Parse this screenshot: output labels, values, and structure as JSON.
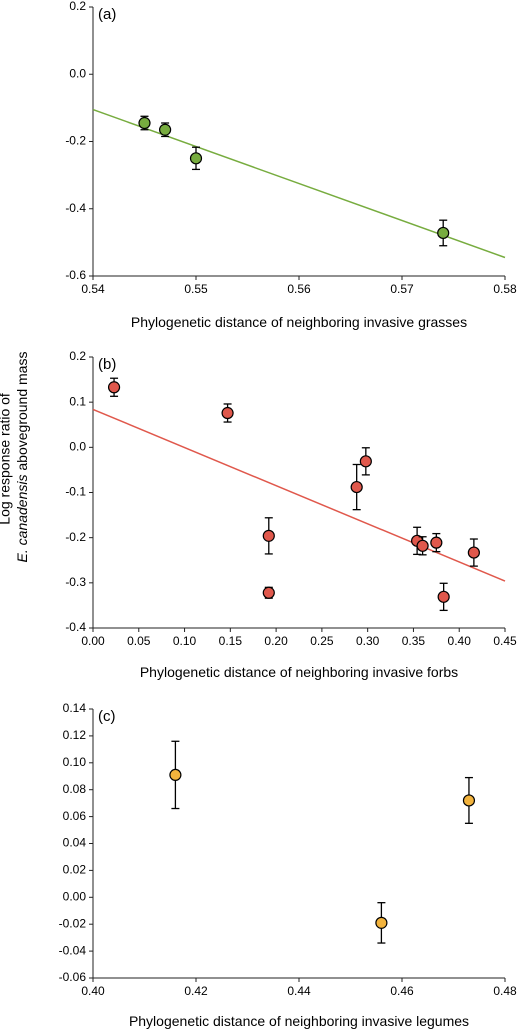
{
  "y_axis_label_line1": "Log response ratio of",
  "y_axis_label_line2_italic": "E. canadensis",
  "y_axis_label_line2_rest": " aboveground mass",
  "colors": {
    "grasses": "#77ac3f",
    "forbs": "#e0584c",
    "legumes": "#f2b33d",
    "line_a": "#77ac3f",
    "line_b": "#e0584c"
  },
  "chart_data": [
    {
      "type": "scatter",
      "panel_label": "(a)",
      "xlabel": "Phylogenetic distance of neighboring invasive grasses",
      "xlim": [
        0.54,
        0.58
      ],
      "ylim": [
        -0.6,
        0.2
      ],
      "x_ticks": [
        "0.54",
        "0.55",
        "0.56",
        "0.57",
        "0.58"
      ],
      "y_ticks": [
        "0.2",
        "0.0",
        "-0.2",
        "-0.4",
        "-0.6"
      ],
      "points": [
        {
          "x": 0.545,
          "y": -0.145,
          "err": 0.02
        },
        {
          "x": 0.547,
          "y": -0.165,
          "err": 0.02
        },
        {
          "x": 0.55,
          "y": -0.25,
          "err": 0.033
        },
        {
          "x": 0.574,
          "y": -0.472,
          "err": 0.038
        }
      ],
      "trendline": {
        "x": [
          0.54,
          0.58
        ],
        "y": [
          -0.105,
          -0.545
        ]
      }
    },
    {
      "type": "scatter",
      "panel_label": "(b)",
      "xlabel": "Phylogenetic distance of neighboring invasive forbs",
      "xlim": [
        0.0,
        0.45
      ],
      "ylim": [
        -0.4,
        0.2
      ],
      "x_ticks": [
        "0.00",
        "0.05",
        "0.10",
        "0.15",
        "0.20",
        "0.25",
        "0.30",
        "0.35",
        "0.40",
        "0.45"
      ],
      "y_ticks": [
        "0.2",
        "0.1",
        "0.0",
        "-0.1",
        "-0.2",
        "-0.3",
        "-0.4"
      ],
      "points": [
        {
          "x": 0.023,
          "y": 0.133,
          "err": 0.02
        },
        {
          "x": 0.147,
          "y": 0.076,
          "err": 0.02
        },
        {
          "x": 0.192,
          "y": -0.196,
          "err": 0.04
        },
        {
          "x": 0.192,
          "y": -0.322,
          "err": 0.012
        },
        {
          "x": 0.288,
          "y": -0.088,
          "err": 0.05
        },
        {
          "x": 0.298,
          "y": -0.031,
          "err": 0.03
        },
        {
          "x": 0.354,
          "y": -0.207,
          "err": 0.03
        },
        {
          "x": 0.36,
          "y": -0.218,
          "err": 0.02
        },
        {
          "x": 0.375,
          "y": -0.211,
          "err": 0.02
        },
        {
          "x": 0.383,
          "y": -0.331,
          "err": 0.03
        },
        {
          "x": 0.416,
          "y": -0.233,
          "err": 0.03
        }
      ],
      "trendline": {
        "x": [
          0.0,
          0.45
        ],
        "y": [
          0.084,
          -0.296
        ]
      }
    },
    {
      "type": "scatter",
      "panel_label": "(c)",
      "xlabel": "Phylogenetic distance of neighboring invasive legumes",
      "xlim": [
        0.4,
        0.48
      ],
      "ylim": [
        -0.06,
        0.14
      ],
      "x_ticks": [
        "0.40",
        "0.42",
        "0.44",
        "0.46",
        "0.48"
      ],
      "y_ticks": [
        "0.14",
        "0.12",
        "0.10",
        "0.08",
        "0.06",
        "0.04",
        "0.02",
        "0.00",
        "-0.02",
        "-0.04",
        "-0.06"
      ],
      "points": [
        {
          "x": 0.416,
          "y": 0.091,
          "err": 0.025
        },
        {
          "x": 0.456,
          "y": -0.019,
          "err": 0.015
        },
        {
          "x": 0.473,
          "y": 0.072,
          "err": 0.017
        }
      ],
      "trendline": null
    }
  ]
}
